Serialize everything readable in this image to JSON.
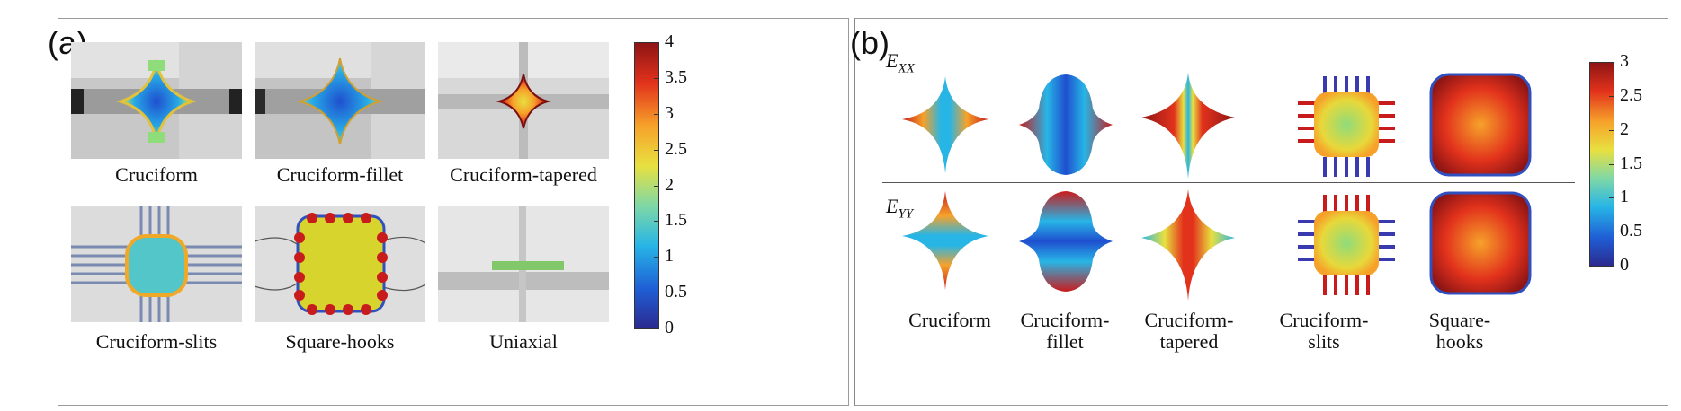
{
  "panel_a": {
    "label": "(a)",
    "captions": [
      "Cruciform",
      "Cruciform-fillet",
      "Cruciform-tapered",
      "Cruciform-slits",
      "Square-hooks",
      "Uniaxial"
    ],
    "colorbar": {
      "ticks": [
        "4",
        "3.5",
        "3",
        "2.5",
        "2",
        "1.5",
        "1",
        "0.5",
        "0"
      ],
      "min": 0,
      "max": 4
    }
  },
  "panel_b": {
    "label": "(b)",
    "row_labels": [
      {
        "main": "E",
        "sub": "XX"
      },
      {
        "main": "E",
        "sub": "YY"
      }
    ],
    "captions": [
      "Cruciform",
      "Cruciform-\nfillet",
      "Cruciform-\ntapered",
      "Cruciform-\nslits",
      "Square-\nhooks"
    ],
    "colorbar": {
      "ticks": [
        "3",
        "2.5",
        "2",
        "1.5",
        "1",
        "0.5",
        "0"
      ],
      "min": 0,
      "max": 3
    }
  },
  "colors": {
    "jet": [
      "#2b2a8f",
      "#1f5fd6",
      "#27b5e6",
      "#7fd8a6",
      "#e8e040",
      "#f6a22a",
      "#e2321c",
      "#8e1515"
    ]
  }
}
